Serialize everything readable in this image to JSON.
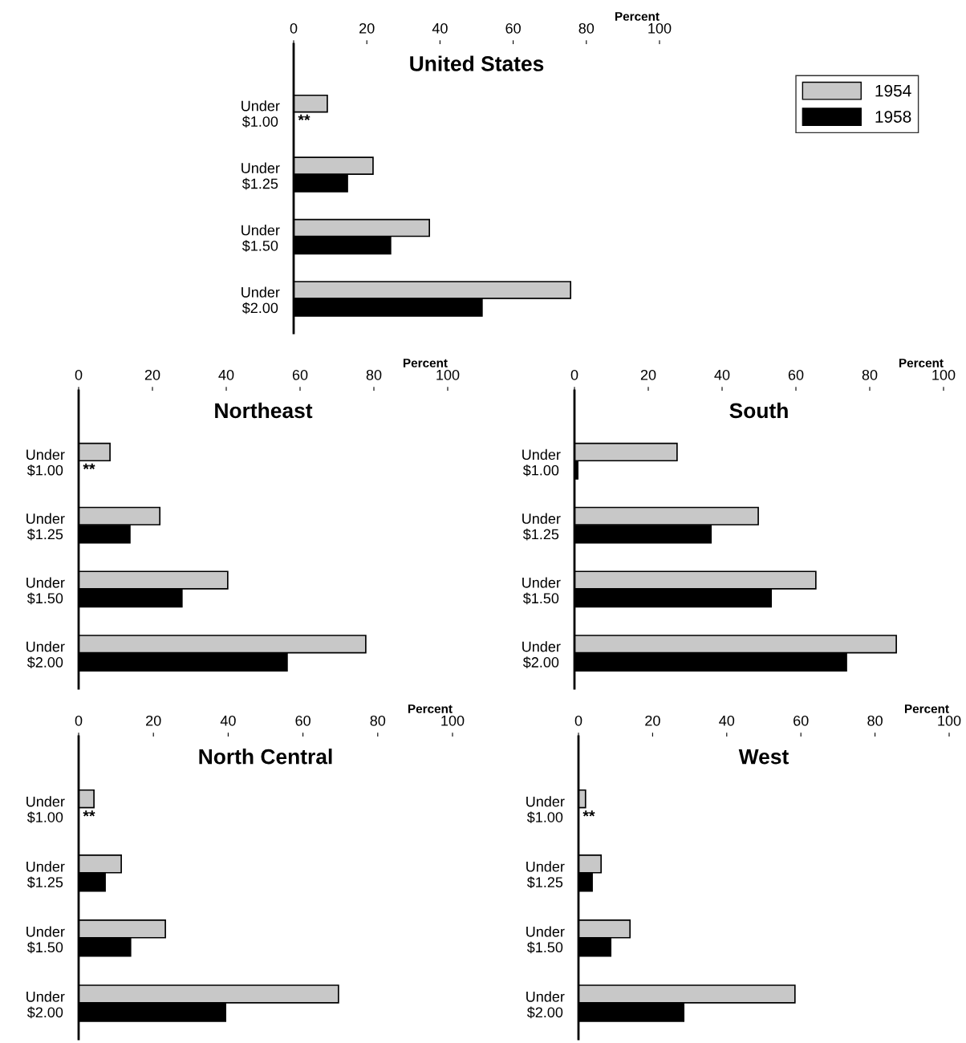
{
  "chart_data": [
    {
      "type": "bar",
      "orientation": "horizontal",
      "title": "United States",
      "xlabel": "Percent",
      "categories": [
        "Under\n$1.00",
        "Under\n$1.25",
        "Under\n$1.50",
        "Under\n$2.00"
      ],
      "xlim": [
        0,
        100
      ],
      "xticks": [
        0,
        20,
        40,
        60,
        80,
        100
      ],
      "grid": false,
      "legend": "top right",
      "tick_labels": "x",
      "series": [
        {
          "name": "1954",
          "color": "#c8c8c8",
          "values": [
            9.2,
            21.7,
            37.1,
            75.7
          ]
        },
        {
          "name": "1958",
          "color": "#000000",
          "values": [
            null,
            14.7,
            26.5,
            51.5
          ]
        }
      ],
      "annotations": [
        "**"
      ]
    },
    {
      "type": "bar",
      "orientation": "horizontal",
      "title": "Northeast",
      "xlabel": "Percent",
      "categories": [
        "Under\n$1.00",
        "Under\n$1.25",
        "Under\n$1.50",
        "Under\n$2.00"
      ],
      "xlim": [
        0,
        100
      ],
      "xticks": [
        0,
        20,
        40,
        60,
        80,
        100
      ],
      "grid": false,
      "series": [
        {
          "color": "#c8c8c8",
          "values": [
            8.5,
            22.0,
            40.4,
            77.8
          ]
        },
        {
          "color": "#000000",
          "values": [
            null,
            13.9,
            28.0,
            56.5
          ]
        }
      ],
      "annotations": [
        "**"
      ]
    },
    {
      "type": "bar",
      "orientation": "horizontal",
      "title": "South",
      "xlabel": "Percent",
      "categories": [
        "Under\n$1.00",
        "Under\n$1.25",
        "Under\n$1.50",
        "Under\n$2.00"
      ],
      "xlim": [
        0,
        100
      ],
      "xticks": [
        0,
        20,
        40,
        60,
        80,
        100
      ],
      "grid": false,
      "series": [
        {
          "color": "#c8c8c8",
          "values": [
            27.8,
            49.8,
            65.4,
            87.2
          ]
        },
        {
          "color": "#000000",
          "values": [
            0.9,
            37.0,
            53.3,
            73.7
          ]
        }
      ]
    },
    {
      "type": "bar",
      "orientation": "horizontal",
      "title": "North Central",
      "xlabel": "Percent",
      "categories": [
        "Under\n$1.00",
        "Under\n$1.25",
        "Under\n$1.50",
        "Under\n$2.00"
      ],
      "xlim": [
        0,
        100
      ],
      "xticks": [
        0,
        20,
        40,
        60,
        80,
        100
      ],
      "grid": false,
      "series": [
        {
          "color": "#c8c8c8",
          "values": [
            4.1,
            11.4,
            23.2,
            69.5
          ]
        },
        {
          "color": "#000000",
          "values": [
            null,
            7.1,
            13.9,
            39.3
          ]
        }
      ],
      "annotations": [
        "**"
      ]
    },
    {
      "type": "bar",
      "orientation": "horizontal",
      "title": "West",
      "xlabel": "Percent",
      "categories": [
        "Under\n$1.00",
        "Under\n$1.25",
        "Under\n$1.50",
        "Under\n$2.00"
      ],
      "xlim": [
        0,
        100
      ],
      "xticks": [
        0,
        20,
        40,
        60,
        80,
        100
      ],
      "grid": false,
      "series": [
        {
          "color": "#c8c8c8",
          "values": [
            1.9,
            6.1,
            13.9,
            58.4
          ]
        },
        {
          "color": "#000000",
          "values": [
            null,
            3.7,
            8.7,
            28.4
          ]
        }
      ],
      "annotations": [
        "**"
      ]
    }
  ]
}
